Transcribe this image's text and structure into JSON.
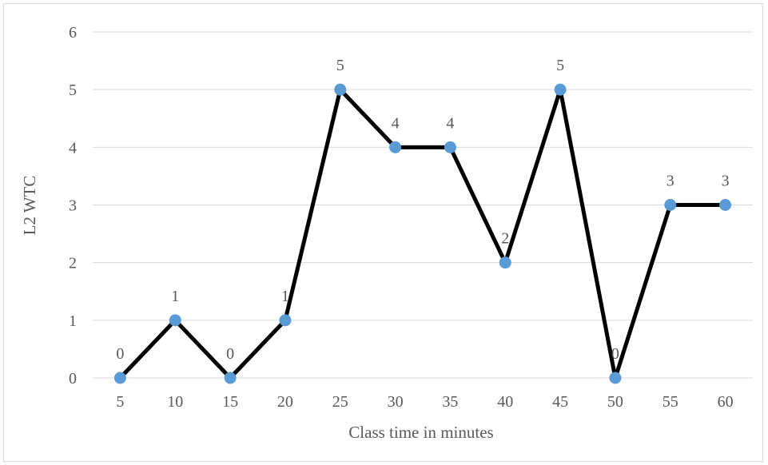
{
  "chart_data": {
    "type": "line",
    "title": "",
    "xlabel": "Class time in minutes",
    "ylabel": "L2 WTC",
    "categories": [
      "5",
      "10",
      "15",
      "20",
      "25",
      "30",
      "35",
      "40",
      "45",
      "50",
      "55",
      "60"
    ],
    "values": [
      0,
      1,
      0,
      1,
      5,
      4,
      4,
      2,
      5,
      0,
      3,
      3
    ],
    "data_labels": [
      "0",
      "1",
      "0",
      "1",
      "5",
      "4",
      "4",
      "2",
      "5",
      "0",
      "3",
      "3"
    ],
    "y_ticks": [
      "0",
      "1",
      "2",
      "3",
      "4",
      "5",
      "6"
    ],
    "ylim": [
      0,
      6
    ],
    "grid": "horizontal",
    "legend": "none",
    "colors": {
      "line": "#000000",
      "marker": "#5b9bd5",
      "grid": "#d9d9d9",
      "text": "#595959"
    }
  }
}
